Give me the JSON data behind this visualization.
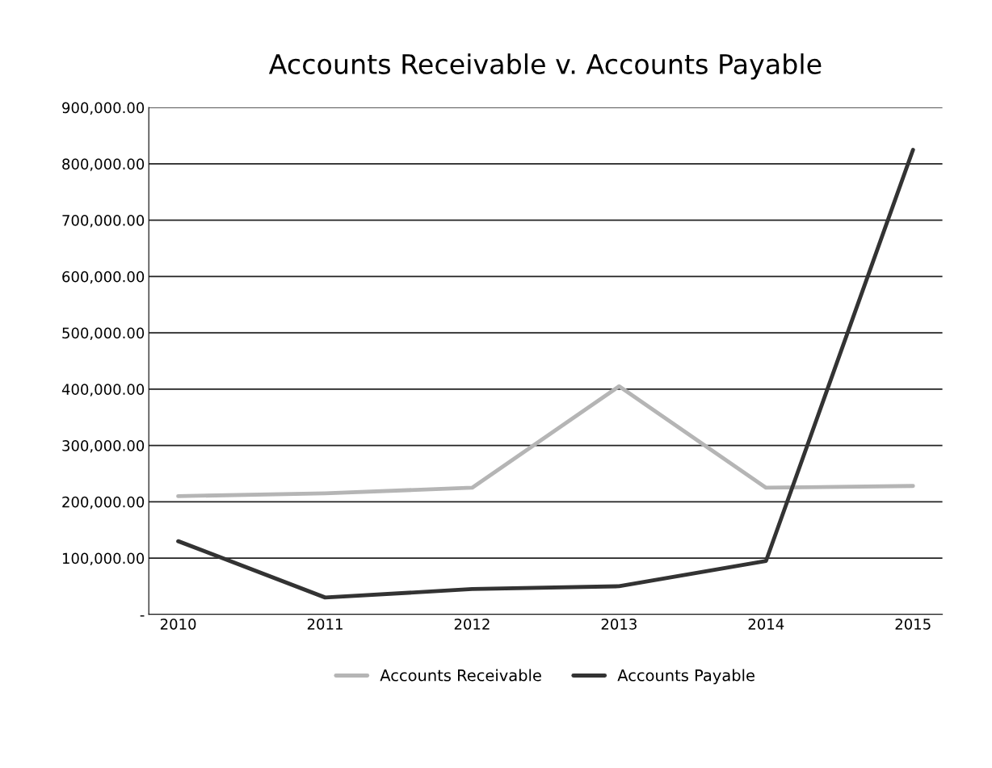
{
  "chart_data": {
    "type": "line",
    "title": "Accounts Receivable v. Accounts Payable",
    "categories": [
      "2010",
      "2011",
      "2012",
      "2013",
      "2014",
      "2015"
    ],
    "series": [
      {
        "name": "Accounts Receivable",
        "color": "#b5b5b5",
        "values": [
          210000,
          215000,
          225000,
          405000,
          225000,
          228000
        ]
      },
      {
        "name": "Accounts Payable",
        "color": "#333333",
        "values": [
          130000,
          30000,
          45000,
          50000,
          95000,
          825000
        ]
      }
    ],
    "ylim": [
      0,
      900000
    ],
    "yticks": [
      {
        "value": 0,
        "label": "-"
      },
      {
        "value": 100000,
        "label": "100,000.00"
      },
      {
        "value": 200000,
        "label": "200,000.00"
      },
      {
        "value": 300000,
        "label": "300,000.00"
      },
      {
        "value": 400000,
        "label": "400,000.00"
      },
      {
        "value": 500000,
        "label": "500,000.00"
      },
      {
        "value": 600000,
        "label": "600,000.00"
      },
      {
        "value": 700000,
        "label": "700,000.00"
      },
      {
        "value": 800000,
        "label": "800,000.00"
      },
      {
        "value": 900000,
        "label": "900,000.00"
      }
    ],
    "grid": "y",
    "legend": "bottom",
    "marker": "none",
    "line_style": "solid"
  }
}
